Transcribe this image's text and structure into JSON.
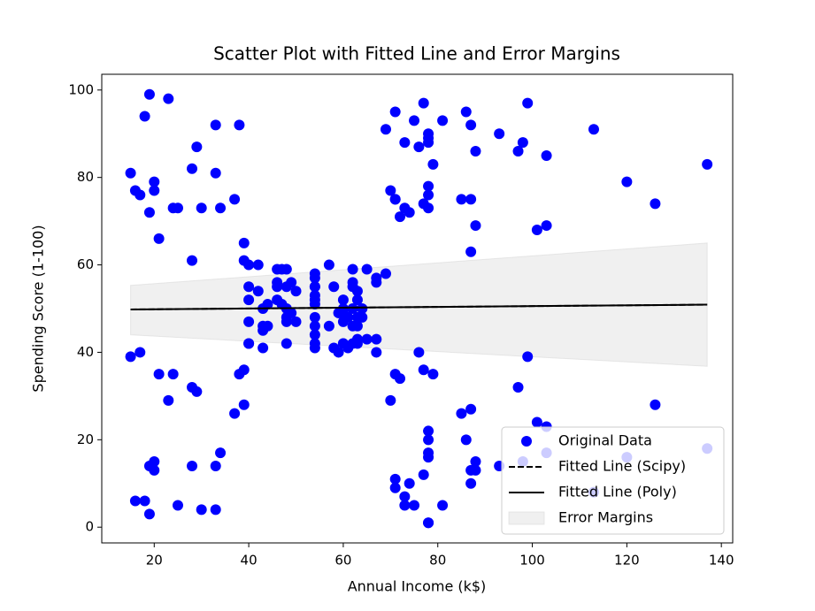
{
  "chart_data": {
    "type": "scatter",
    "title": "Scatter Plot with Fitted Line and Error Margins",
    "xlabel": "Annual Income (k$)",
    "ylabel": "Spending Score (1-100)",
    "xlim": [
      8.9,
      142.4
    ],
    "ylim": [
      -3.6,
      103.6
    ],
    "xticks": [
      20,
      40,
      60,
      80,
      100,
      120,
      140
    ],
    "yticks": [
      0,
      20,
      40,
      60,
      80,
      100
    ],
    "legend": "lower right",
    "series": [
      {
        "name": "Original Data",
        "type": "scatter",
        "color": "#0000ff",
        "x": [
          15,
          15,
          16,
          16,
          17,
          17,
          18,
          18,
          19,
          19,
          19,
          19,
          20,
          20,
          20,
          20,
          21,
          21,
          23,
          23,
          24,
          24,
          25,
          25,
          28,
          28,
          28,
          28,
          29,
          29,
          30,
          30,
          33,
          33,
          33,
          33,
          34,
          34,
          37,
          37,
          38,
          38,
          39,
          39,
          39,
          39,
          40,
          40,
          40,
          40,
          40,
          40,
          42,
          42,
          43,
          43,
          43,
          43,
          44,
          44,
          46,
          46,
          46,
          46,
          47,
          47,
          48,
          48,
          48,
          48,
          48,
          48,
          49,
          49,
          50,
          50,
          54,
          54,
          54,
          54,
          54,
          54,
          54,
          54,
          54,
          54,
          54,
          54,
          57,
          57,
          58,
          58,
          59,
          59,
          60,
          60,
          60,
          60,
          60,
          60,
          61,
          61,
          62,
          62,
          62,
          62,
          62,
          62,
          63,
          63,
          63,
          63,
          63,
          63,
          64,
          64,
          65,
          65,
          67,
          67,
          67,
          67,
          69,
          69,
          70,
          70,
          71,
          71,
          71,
          71,
          71,
          71,
          72,
          72,
          73,
          73,
          73,
          73,
          74,
          74,
          75,
          75,
          76,
          76,
          77,
          77,
          77,
          77,
          78,
          78,
          78,
          78,
          78,
          78,
          78,
          78,
          78,
          78,
          78,
          78,
          79,
          79,
          81,
          81,
          85,
          85,
          86,
          86,
          87,
          87,
          87,
          87,
          87,
          87,
          88,
          88,
          88,
          88,
          93,
          93,
          97,
          97,
          98,
          98,
          99,
          99,
          101,
          101,
          103,
          103,
          103,
          103,
          113,
          113,
          120,
          120,
          126,
          126,
          137,
          137
        ],
        "values": [
          39,
          81,
          6,
          77,
          40,
          76,
          6,
          94,
          3,
          72,
          14,
          99,
          15,
          77,
          13,
          79,
          35,
          66,
          29,
          98,
          35,
          73,
          5,
          73,
          14,
          82,
          32,
          61,
          31,
          87,
          4,
          73,
          4,
          92,
          14,
          81,
          17,
          73,
          26,
          75,
          35,
          92,
          36,
          61,
          28,
          65,
          55,
          47,
          42,
          42,
          52,
          60,
          54,
          60,
          45,
          41,
          50,
          46,
          51,
          46,
          56,
          55,
          52,
          59,
          51,
          59,
          50,
          48,
          59,
          47,
          55,
          42,
          49,
          56,
          47,
          54,
          53,
          48,
          52,
          42,
          51,
          55,
          41,
          44,
          57,
          46,
          58,
          55,
          60,
          46,
          55,
          41,
          49,
          40,
          42,
          52,
          47,
          50,
          42,
          49,
          41,
          48,
          59,
          55,
          56,
          42,
          50,
          46,
          43,
          48,
          52,
          54,
          42,
          46,
          48,
          50,
          43,
          59,
          43,
          57,
          56,
          40,
          58,
          91,
          29,
          77,
          35,
          95,
          11,
          75,
          9,
          75,
          34,
          71,
          5,
          88,
          7,
          73,
          10,
          72,
          5,
          93,
          40,
          87,
          12,
          97,
          36,
          74,
          22,
          90,
          17,
          88,
          20,
          76,
          16,
          89,
          1,
          78,
          1,
          73,
          35,
          83,
          5,
          93,
          26,
          75,
          20,
          95,
          27,
          63,
          13,
          75,
          10,
          92,
          13,
          86,
          15,
          69,
          14,
          90,
          32,
          86,
          15,
          88,
          39,
          97,
          24,
          68,
          17,
          85,
          23,
          69,
          8,
          91,
          16,
          79,
          28,
          74,
          18,
          83
        ]
      },
      {
        "name": "Fitted Line (Scipy)",
        "type": "line",
        "style": "dashed",
        "color": "#000000",
        "x": [
          15,
          137
        ],
        "values": [
          49.8,
          50.9
        ]
      },
      {
        "name": "Fitted Line (Poly)",
        "type": "line",
        "style": "solid",
        "color": "#000000",
        "x": [
          15,
          137
        ],
        "values": [
          49.8,
          50.9
        ]
      },
      {
        "name": "Error Margins",
        "type": "area",
        "color": "#d3d3d3",
        "x": [
          15,
          137
        ],
        "lower": [
          44,
          36.8
        ],
        "upper": [
          55.3,
          65
        ]
      }
    ]
  }
}
